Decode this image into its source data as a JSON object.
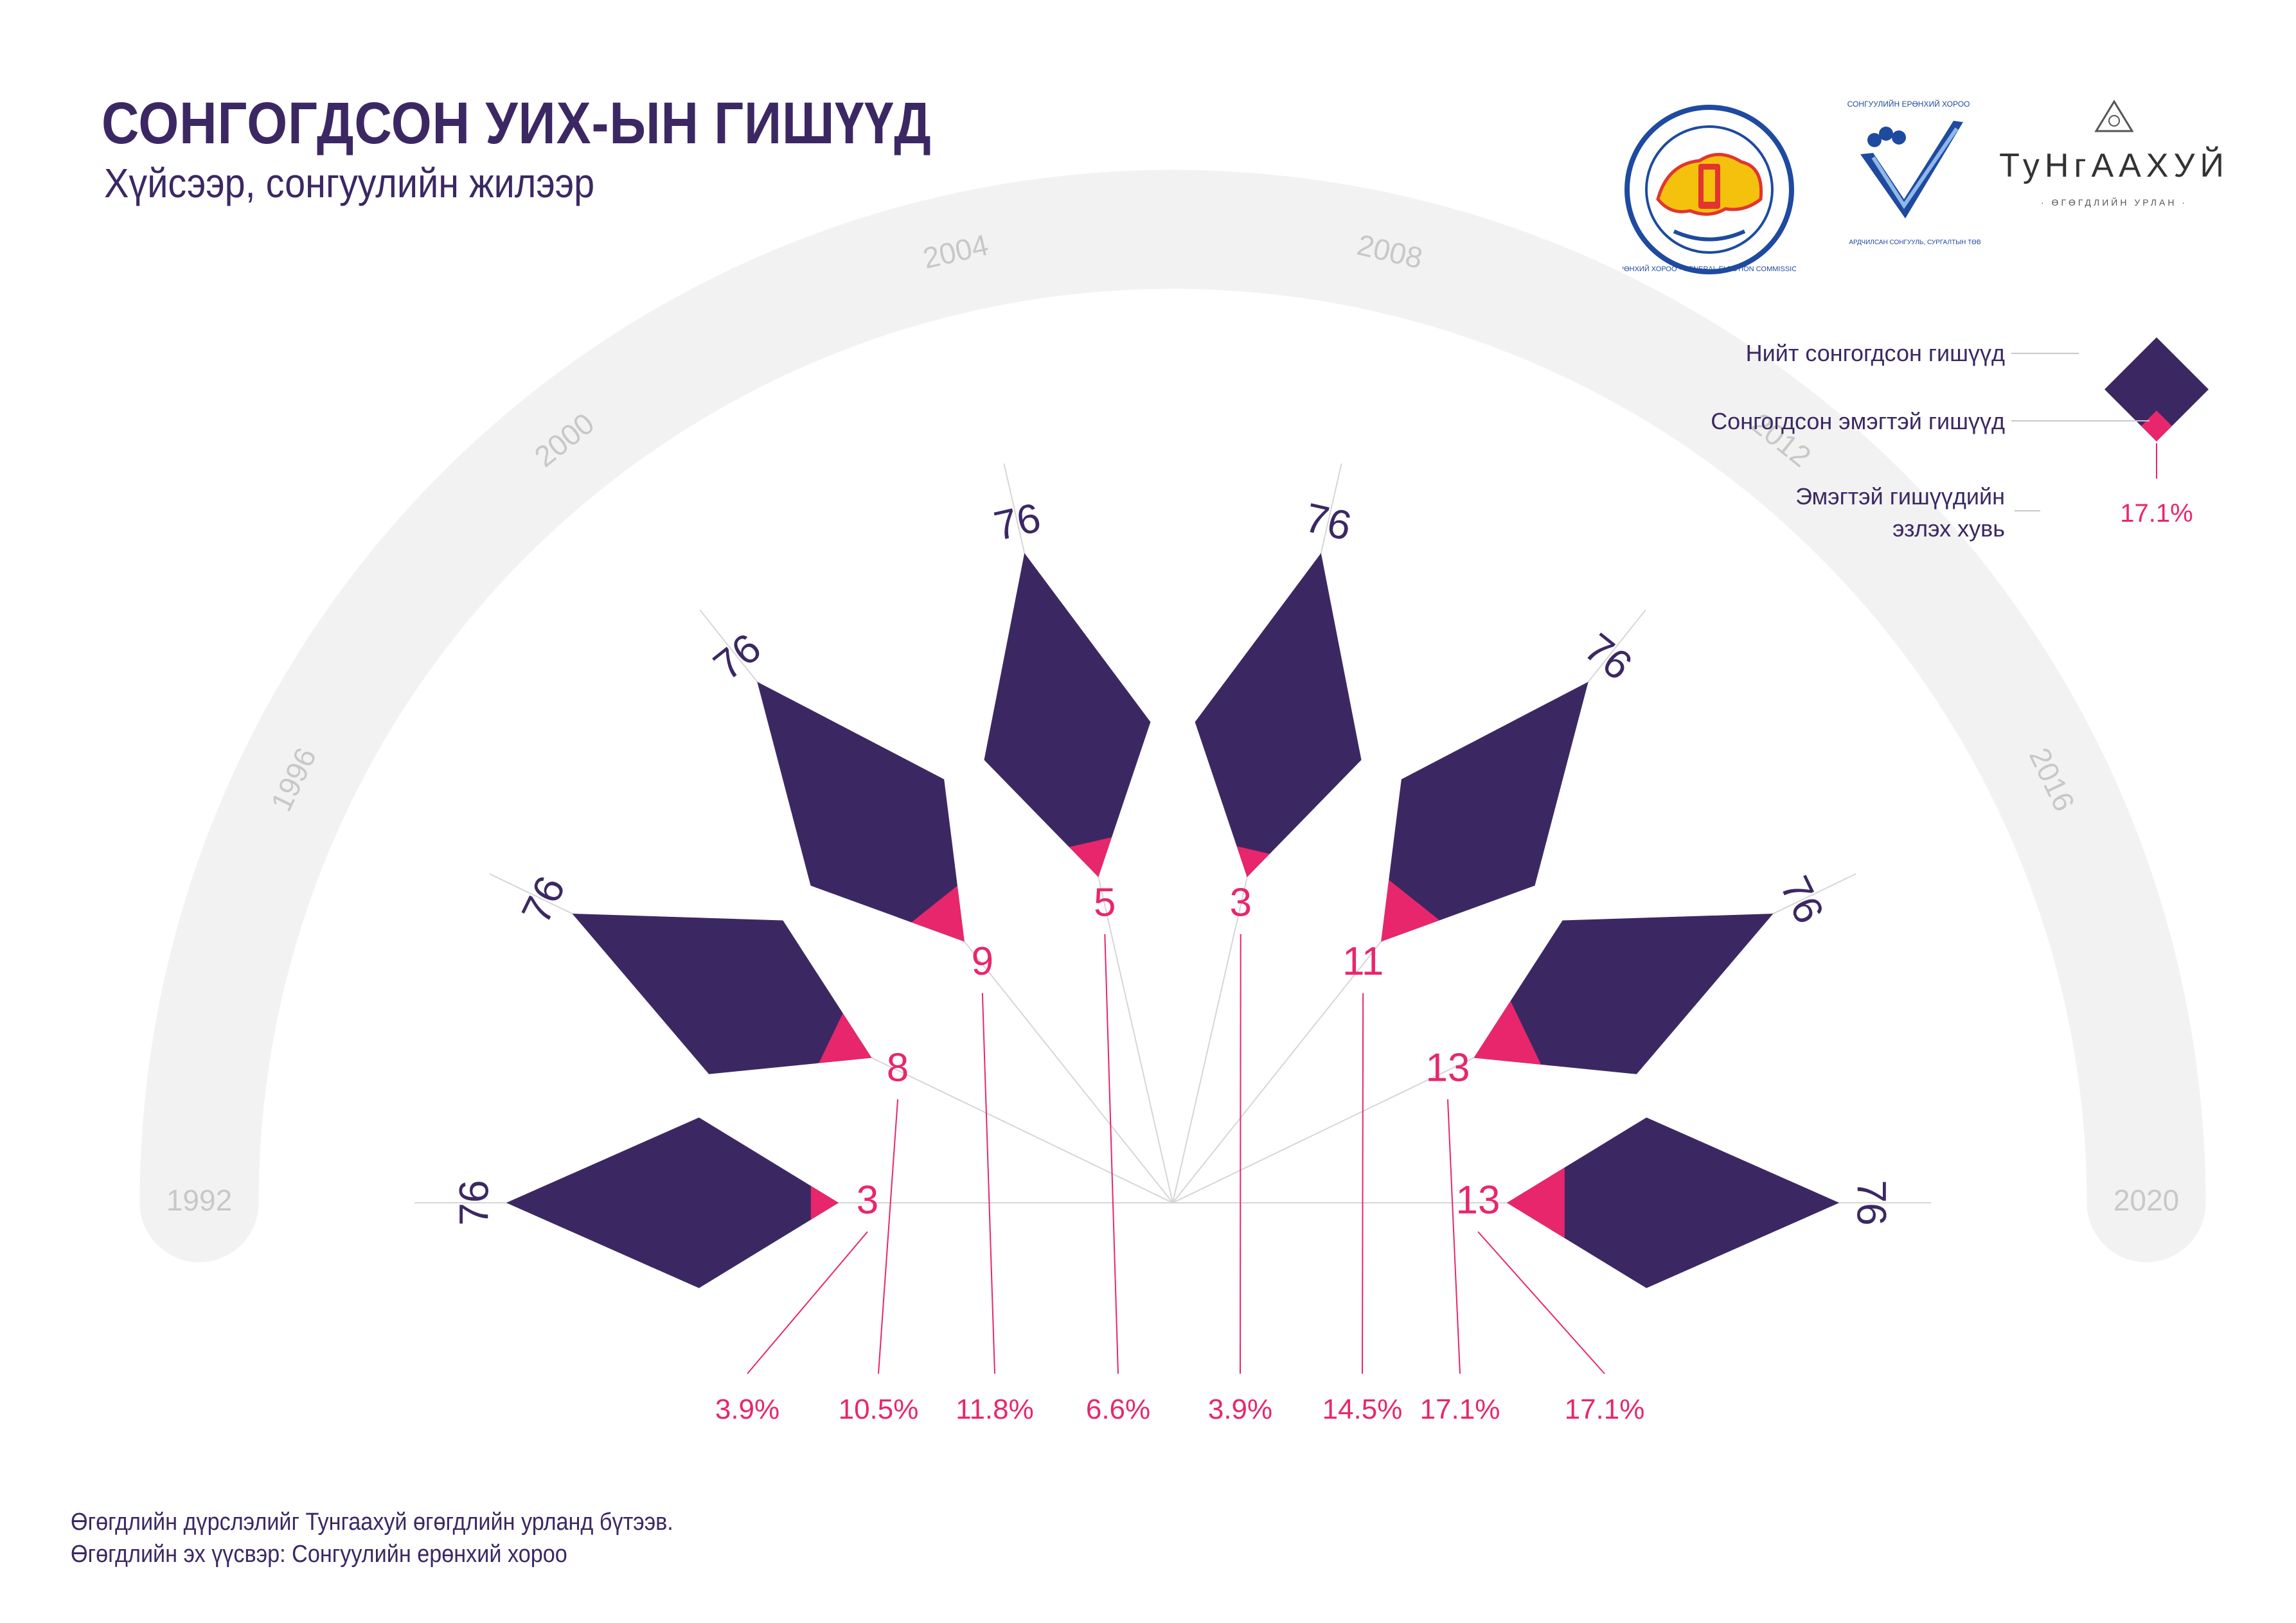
{
  "header": {
    "title": "СОНГОГДСОН УИХ-ЫН ГИШҮҮД",
    "subtitle": "Хүйсээр, сонгуулийн жилээр"
  },
  "logos": {
    "gec_ring_text": "СОНГУУЛИЙН ЕРӨНХИЙ ХОРОО · GENERAL ELECTION COMMISSION OF MONGOLIA",
    "gec2_top": "СОНГУУЛИЙН ЕРӨНХИЙ ХОРОО",
    "gec2_bottom": "АРДЧИЛСАН СОНГУУЛЬ, СУРГАЛТЫН ТӨВ",
    "tungaakhui_name": "ТуНгААХУЙ",
    "tungaakhui_tagline": "· ӨГӨГДЛИЙН УРЛАН ·"
  },
  "legend": {
    "total_label": "Нийт сонгогдсон гишүүд",
    "women_label": "Сонгогдсон эмэгтэй гишүүд",
    "share_label_line1": "Эмэгтэй гишүүдийн",
    "share_label_line2": "эзлэх хувь",
    "share_example": "17.1%"
  },
  "colors": {
    "total": "#3b2863",
    "women": "#e8266c",
    "arc": "#f2f2f2",
    "year_text": "#c8c8c8",
    "guide_line": "#d6d6d6"
  },
  "chart_data": {
    "type": "radial-diamond",
    "series": [
      {
        "name": "Нийт сонгогдсон гишүүд",
        "values": [
          76,
          76,
          76,
          76,
          76,
          76,
          76,
          76
        ]
      },
      {
        "name": "Сонгогдсон эмэгтэй гишүүд",
        "values": [
          3,
          8,
          9,
          5,
          3,
          11,
          13,
          13
        ]
      }
    ],
    "categories": [
      "1992",
      "1996",
      "2000",
      "2004",
      "2008",
      "2012",
      "2016",
      "2020"
    ],
    "share_labels": [
      "3.9%",
      "10.5%",
      "11.8%",
      "6.6%",
      "3.9%",
      "14.5%",
      "17.1%",
      "17.1%"
    ]
  },
  "footer": {
    "line1": "Өгөгдлийн дүрслэлийг Тунгаахуй өгөгдлийн урланд бүтээв.",
    "line2": "Өгөгдлийн эх үүсвэр: Сонгуулийн ерөнхий хороо"
  }
}
